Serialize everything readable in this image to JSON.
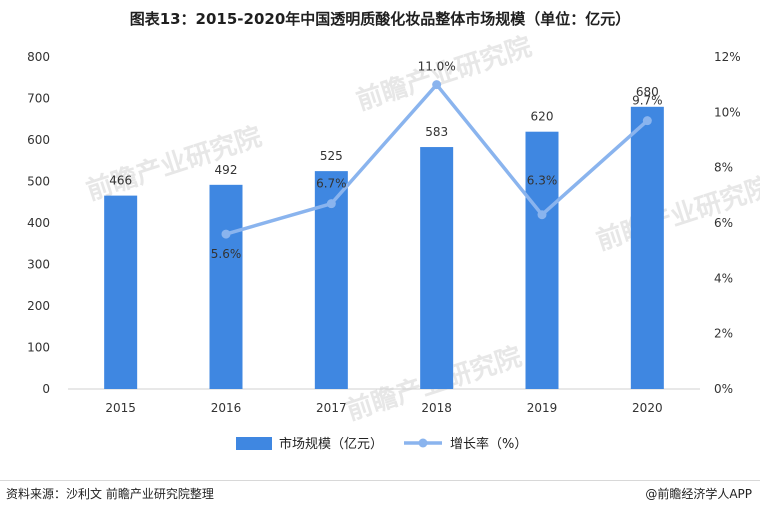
{
  "title": "图表13：2015-2020年中国透明质酸化妆品整体市场规模（单位：亿元）",
  "footer": {
    "source": "资料来源：沙利文 前瞻产业研究院整理",
    "brand": "@前瞻经济学人APP"
  },
  "watermark": "前瞻产业研究院",
  "colors": {
    "bar": "#3f87e1",
    "line": "#8ab4ee",
    "axis": "#d0d0d0"
  },
  "chart_data": {
    "type": "bar",
    "categories": [
      "2015",
      "2016",
      "2017",
      "2018",
      "2019",
      "2020"
    ],
    "series": [
      {
        "name": "市场规模（亿元）",
        "type": "bar",
        "axis": "left",
        "values": [
          466,
          492,
          525,
          583,
          620,
          680
        ],
        "labels": [
          "466",
          "492",
          "525",
          "583",
          "620",
          "680"
        ]
      },
      {
        "name": "增长率（%）",
        "type": "line",
        "axis": "right",
        "values": [
          null,
          5.6,
          6.7,
          11.0,
          6.3,
          9.7
        ],
        "labels": [
          "",
          "5.6%",
          "6.7%",
          "11.0%",
          "6.3%",
          "9.7%"
        ]
      }
    ],
    "ylim": [
      0,
      800
    ],
    "yticks": [
      "0",
      "100",
      "200",
      "300",
      "400",
      "500",
      "600",
      "700",
      "800"
    ],
    "y2lim": [
      0,
      12
    ],
    "y2ticks": [
      "0%",
      "2%",
      "4%",
      "6%",
      "8%",
      "10%",
      "12%"
    ],
    "legend": "bottom",
    "grid": false
  }
}
